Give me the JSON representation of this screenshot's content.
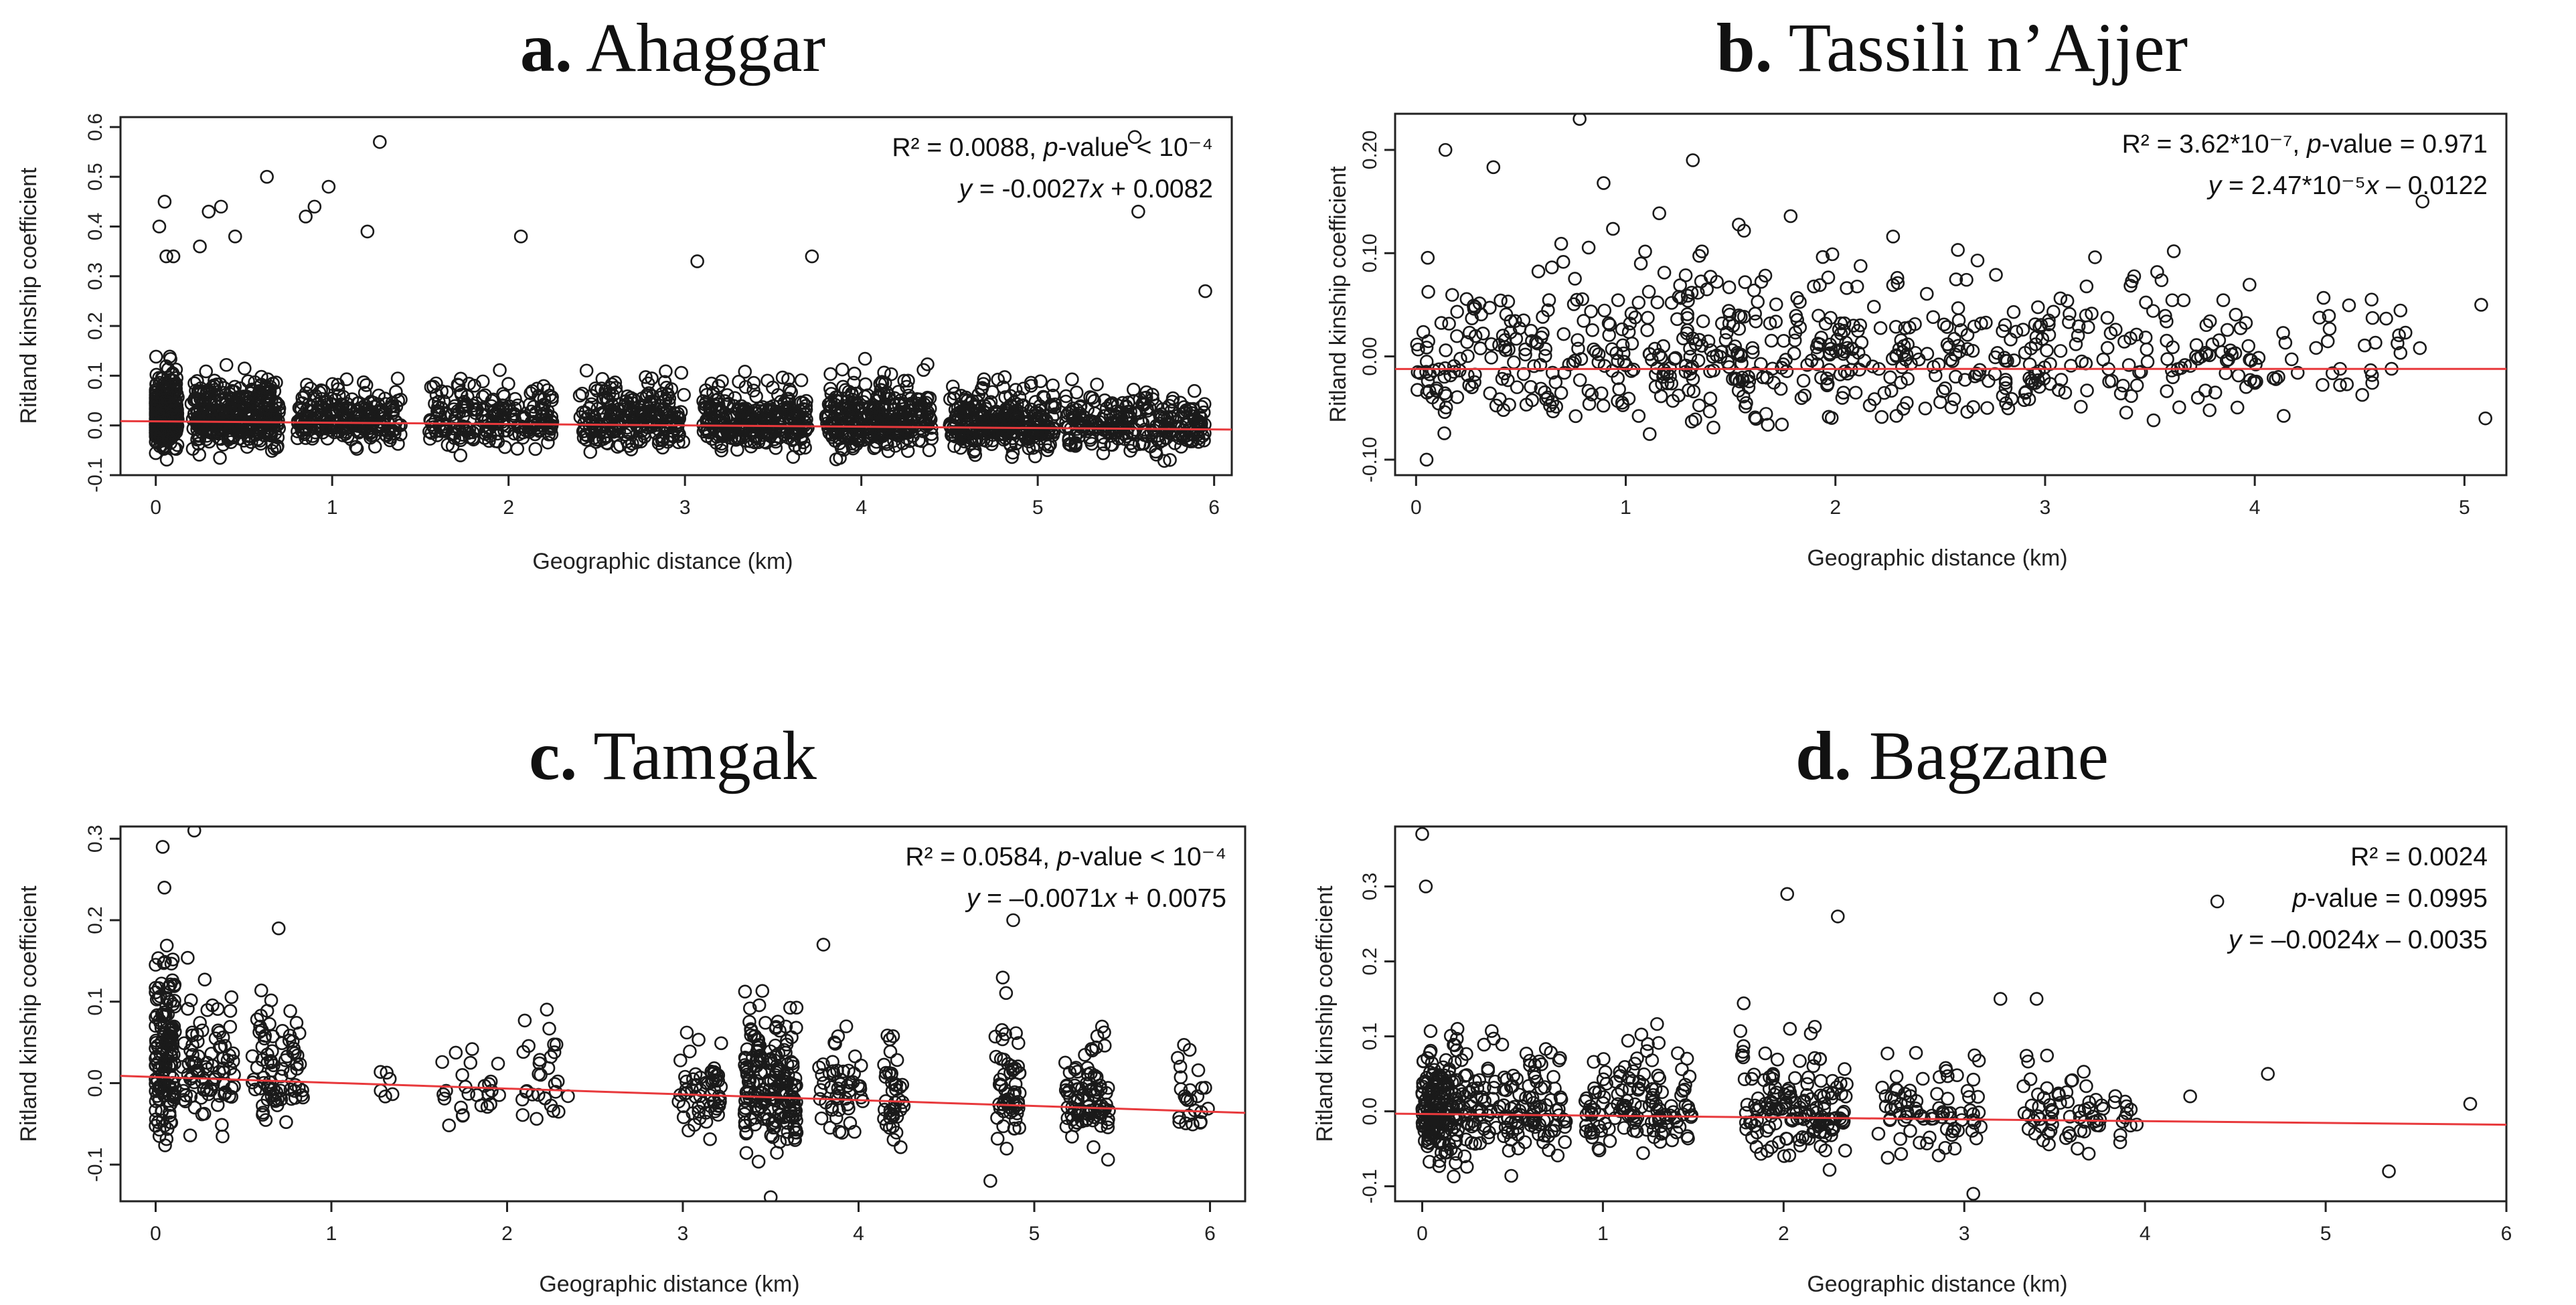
{
  "chart_data": [
    {
      "id": "a",
      "type": "scatter",
      "title_letter": "a.",
      "title_text": "Ahaggar",
      "xlabel": "Geographic distance (km)",
      "ylabel": "Ritland kinship coefficient",
      "xlim": [
        -0.2,
        6.1
      ],
      "ylim": [
        -0.1,
        0.62
      ],
      "xticks": [
        0,
        1,
        2,
        3,
        4,
        5,
        6
      ],
      "yticks": [
        -0.1,
        0.0,
        0.1,
        0.2,
        0.3,
        0.4,
        0.5,
        0.6
      ],
      "ytick_labels": [
        "-0.1",
        "0.0",
        "0.1",
        "0.2",
        "0.3",
        "0.4",
        "0.5",
        "0.6"
      ],
      "annotation_lines": [
        "R² = 0.0088, p-value < 10⁻⁴",
        "y = -0.0027x + 0.0082"
      ],
      "regression": {
        "slope": -0.0027,
        "intercept": 0.0082
      },
      "outliers": [
        {
          "x": 0.02,
          "y": 0.4
        },
        {
          "x": 0.05,
          "y": 0.45
        },
        {
          "x": 0.06,
          "y": 0.34
        },
        {
          "x": 0.1,
          "y": 0.34
        },
        {
          "x": 0.25,
          "y": 0.36
        },
        {
          "x": 0.3,
          "y": 0.43
        },
        {
          "x": 0.37,
          "y": 0.44
        },
        {
          "x": 0.45,
          "y": 0.38
        },
        {
          "x": 0.63,
          "y": 0.5
        },
        {
          "x": 0.85,
          "y": 0.42
        },
        {
          "x": 0.9,
          "y": 0.44
        },
        {
          "x": 0.98,
          "y": 0.48
        },
        {
          "x": 1.2,
          "y": 0.39
        },
        {
          "x": 1.27,
          "y": 0.57
        },
        {
          "x": 2.07,
          "y": 0.38
        },
        {
          "x": 3.07,
          "y": 0.33
        },
        {
          "x": 3.72,
          "y": 0.34
        },
        {
          "x": 5.55,
          "y": 0.58
        },
        {
          "x": 5.57,
          "y": 0.43
        },
        {
          "x": 5.95,
          "y": 0.27
        }
      ],
      "clusters": [
        {
          "c": 0.05,
          "w": 0.15,
          "n": 330,
          "sd": 0.045
        },
        {
          "c": 0.45,
          "w": 0.5,
          "n": 360,
          "sd": 0.045
        },
        {
          "c": 1.1,
          "w": 0.6,
          "n": 240,
          "sd": 0.04
        },
        {
          "c": 1.9,
          "w": 0.7,
          "n": 220,
          "sd": 0.04
        },
        {
          "c": 2.7,
          "w": 0.6,
          "n": 240,
          "sd": 0.04
        },
        {
          "c": 3.4,
          "w": 0.6,
          "n": 280,
          "sd": 0.04
        },
        {
          "c": 4.1,
          "w": 0.6,
          "n": 320,
          "sd": 0.045
        },
        {
          "c": 4.8,
          "w": 0.6,
          "n": 300,
          "sd": 0.04
        },
        {
          "c": 5.55,
          "w": 0.8,
          "n": 260,
          "sd": 0.035
        }
      ]
    },
    {
      "id": "b",
      "type": "scatter",
      "title_letter": "b.",
      "title_text": "Tassili n’Ajjer",
      "xlabel": "Geographic distance (km)",
      "ylabel": "Ritland kinship coefficient",
      "xlim": [
        -0.1,
        5.2
      ],
      "ylim": [
        -0.115,
        0.235
      ],
      "xticks": [
        0,
        1,
        2,
        3,
        4,
        5
      ],
      "yticks": [
        -0.1,
        0.0,
        0.1,
        0.2
      ],
      "ytick_labels": [
        "-0.10",
        "0.00",
        "0.10",
        "0.20"
      ],
      "annotation_lines": [
        "R² = 3.62*10⁻⁷, p-value = 0.971",
        "y = 2.47*10⁻⁵x – 0.0122"
      ],
      "regression": {
        "slope": 2.47e-05,
        "intercept": -0.0122
      },
      "outliers": [
        {
          "x": 0.14,
          "y": 0.2
        },
        {
          "x": 0.78,
          "y": 0.23
        },
        {
          "x": 1.32,
          "y": 0.19
        },
        {
          "x": 4.8,
          "y": 0.15
        },
        {
          "x": 5.08,
          "y": 0.05
        },
        {
          "x": 5.1,
          "y": -0.06
        },
        {
          "x": 0.05,
          "y": -0.1
        }
      ],
      "clusters": [
        {
          "c": 0.5,
          "w": 1.0,
          "n": 170,
          "sd": 0.05
        },
        {
          "c": 1.5,
          "w": 1.0,
          "n": 200,
          "sd": 0.05
        },
        {
          "c": 2.5,
          "w": 1.0,
          "n": 160,
          "sd": 0.045
        },
        {
          "c": 3.5,
          "w": 1.0,
          "n": 110,
          "sd": 0.045
        },
        {
          "c": 4.4,
          "w": 0.8,
          "n": 40,
          "sd": 0.04
        }
      ]
    },
    {
      "id": "c",
      "type": "scatter",
      "title_letter": "c.",
      "title_text": "Tamgak",
      "xlabel": "Geographic distance (km)",
      "ylabel": "Ritland kinship coefficient",
      "xlim": [
        -0.2,
        6.2
      ],
      "ylim": [
        -0.145,
        0.315
      ],
      "xticks": [
        0,
        1,
        2,
        3,
        4,
        5,
        6
      ],
      "yticks": [
        -0.1,
        0.0,
        0.1,
        0.2,
        0.3
      ],
      "ytick_labels": [
        "-0.1",
        "0.0",
        "0.1",
        "0.2",
        "0.3"
      ],
      "annotation_lines": [
        "R² = 0.0584, p-value < 10⁻⁴",
        "y = –0.0071x + 0.0075"
      ],
      "regression": {
        "slope": -0.0071,
        "intercept": 0.0075
      },
      "outliers": [
        {
          "x": 0.04,
          "y": 0.29
        },
        {
          "x": 0.22,
          "y": 0.31
        },
        {
          "x": 0.05,
          "y": 0.24
        },
        {
          "x": 0.7,
          "y": 0.19
        },
        {
          "x": 3.8,
          "y": 0.17
        },
        {
          "x": 4.88,
          "y": 0.2
        },
        {
          "x": 3.5,
          "y": -0.14
        },
        {
          "x": 4.75,
          "y": -0.12
        }
      ],
      "clusters": [
        {
          "c": 0.05,
          "w": 0.12,
          "n": 150,
          "sd": 0.07
        },
        {
          "c": 0.3,
          "w": 0.3,
          "n": 90,
          "sd": 0.05
        },
        {
          "c": 0.7,
          "w": 0.3,
          "n": 80,
          "sd": 0.045
        },
        {
          "c": 1.3,
          "w": 0.1,
          "n": 6,
          "sd": 0.015
        },
        {
          "c": 1.8,
          "w": 0.35,
          "n": 25,
          "sd": 0.035
        },
        {
          "c": 2.2,
          "w": 0.3,
          "n": 30,
          "sd": 0.04
        },
        {
          "c": 3.1,
          "w": 0.25,
          "n": 60,
          "sd": 0.04
        },
        {
          "c": 3.5,
          "w": 0.3,
          "n": 190,
          "sd": 0.05
        },
        {
          "c": 3.9,
          "w": 0.25,
          "n": 50,
          "sd": 0.04
        },
        {
          "c": 4.2,
          "w": 0.12,
          "n": 40,
          "sd": 0.045
        },
        {
          "c": 4.85,
          "w": 0.15,
          "n": 60,
          "sd": 0.045
        },
        {
          "c": 5.3,
          "w": 0.25,
          "n": 90,
          "sd": 0.035
        },
        {
          "c": 5.9,
          "w": 0.2,
          "n": 25,
          "sd": 0.035
        }
      ]
    },
    {
      "id": "d",
      "type": "scatter",
      "title_letter": "d.",
      "title_text": "Bagzane",
      "xlabel": "Geographic distance (km)",
      "ylabel": "Ritland kinship coefficient",
      "xlim": [
        -0.15,
        6.0
      ],
      "ylim": [
        -0.12,
        0.38
      ],
      "xticks": [
        0,
        1,
        2,
        3,
        4,
        5,
        6
      ],
      "yticks": [
        -0.1,
        0.0,
        0.1,
        0.2,
        0.3
      ],
      "ytick_labels": [
        "-0.1",
        "0.0",
        "0.1",
        "0.2",
        "0.3"
      ],
      "annotation_lines": [
        "R² = 0.0024",
        "p-value = 0.0995",
        "y = –0.0024x – 0.0035"
      ],
      "regression": {
        "slope": -0.0024,
        "intercept": -0.0035
      },
      "outliers": [
        {
          "x": 0.0,
          "y": 0.37
        },
        {
          "x": 0.02,
          "y": 0.3
        },
        {
          "x": 2.02,
          "y": 0.29
        },
        {
          "x": 2.3,
          "y": 0.26
        },
        {
          "x": 4.4,
          "y": 0.28
        },
        {
          "x": 5.35,
          "y": -0.08
        },
        {
          "x": 5.8,
          "y": 0.01
        },
        {
          "x": 4.68,
          "y": 0.05
        },
        {
          "x": 4.25,
          "y": 0.02
        },
        {
          "x": 3.05,
          "y": -0.11
        },
        {
          "x": 3.2,
          "y": 0.15
        },
        {
          "x": 3.4,
          "y": 0.15
        }
      ],
      "clusters": [
        {
          "c": 0.1,
          "w": 0.2,
          "n": 170,
          "sd": 0.05
        },
        {
          "c": 0.5,
          "w": 0.6,
          "n": 150,
          "sd": 0.045
        },
        {
          "c": 1.2,
          "w": 0.6,
          "n": 130,
          "sd": 0.04
        },
        {
          "c": 2.05,
          "w": 0.6,
          "n": 150,
          "sd": 0.045
        },
        {
          "c": 2.8,
          "w": 0.6,
          "n": 80,
          "sd": 0.04
        },
        {
          "c": 3.55,
          "w": 0.45,
          "n": 60,
          "sd": 0.04
        },
        {
          "c": 3.9,
          "w": 0.15,
          "n": 12,
          "sd": 0.035
        }
      ]
    }
  ]
}
